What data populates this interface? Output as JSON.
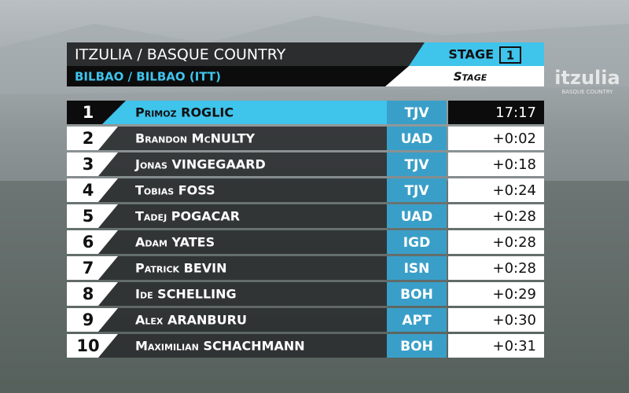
{
  "header": {
    "title": "ITZULIA / BASQUE COUNTRY",
    "subtitle": "BILBAO / BILBAO (ITT)",
    "stage_label": "STAGE",
    "stage_number": "1",
    "stage_type": "Stage"
  },
  "logo": {
    "name": "itzulia",
    "tagline": "BASQUE COUNTRY"
  },
  "table": {
    "rows": [
      [
        "1",
        "Primoz ROGLIC",
        "TJV",
        "17:17"
      ],
      [
        "2",
        "Brandon McNULTY",
        "UAD",
        "+0:02"
      ],
      [
        "3",
        "Jonas VINGEGAARD",
        "TJV",
        "+0:18"
      ],
      [
        "4",
        "Tobias FOSS",
        "TJV",
        "+0:24"
      ],
      [
        "5",
        "Tadej POGACAR",
        "UAD",
        "+0:28"
      ],
      [
        "6",
        "Adam YATES",
        "IGD",
        "+0:28"
      ],
      [
        "7",
        "Patrick BEVIN",
        "ISN",
        "+0:28"
      ],
      [
        "8",
        "Ide SCHELLING",
        "BOH",
        "+0:29"
      ],
      [
        "9",
        "Alex ARANBURU",
        "APT",
        "+0:30"
      ],
      [
        "10",
        "Maximilian SCHACHMANN",
        "BOH",
        "+0:31"
      ]
    ]
  }
}
